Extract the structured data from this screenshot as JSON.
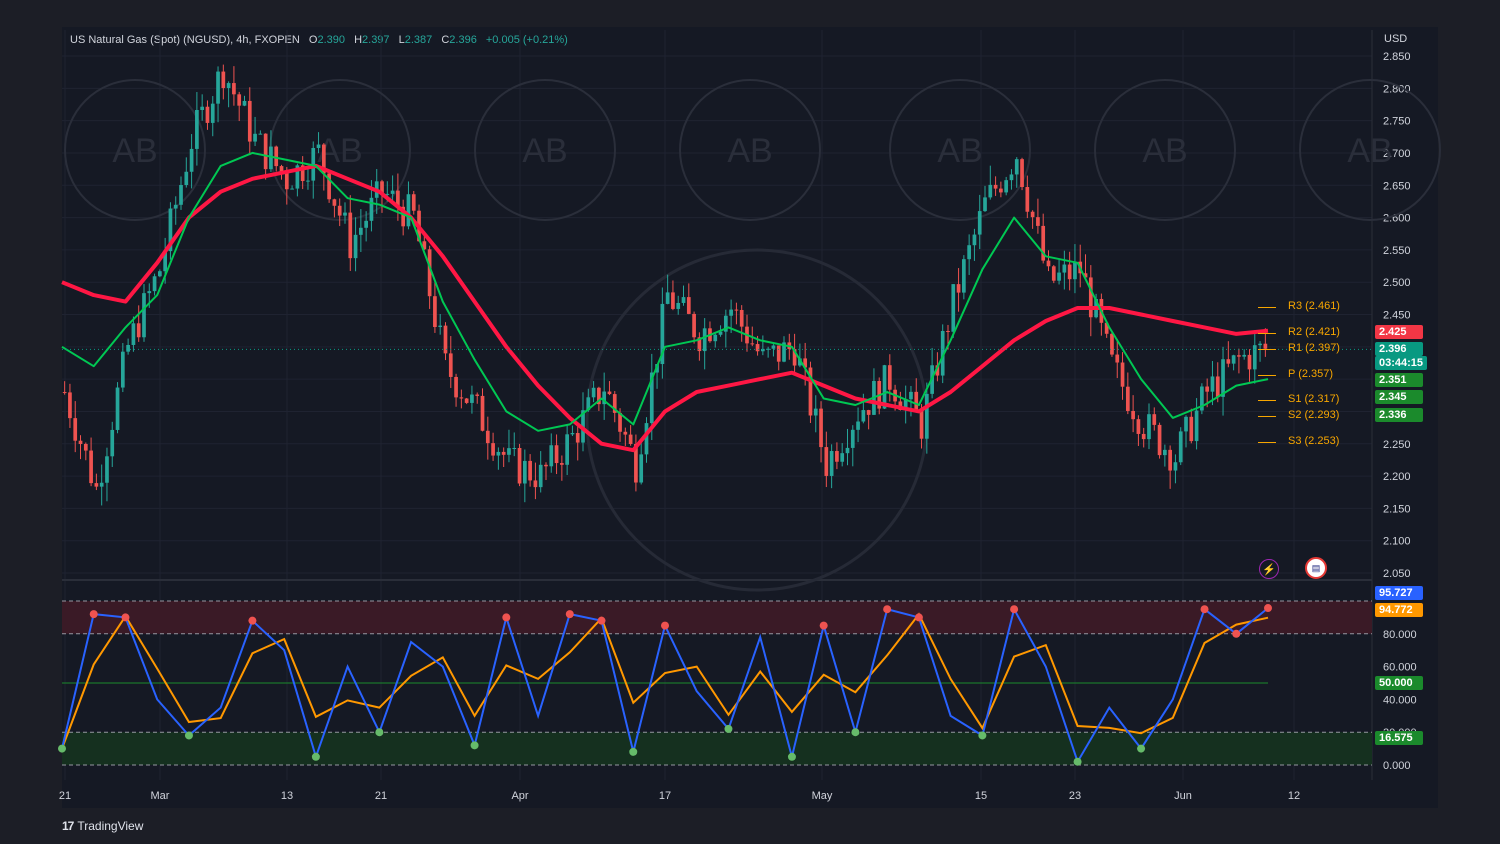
{
  "header": {
    "title": "US Natural Gas (Spot) (NGUSD), 4h, FXOPEN",
    "o_label": "O",
    "o_value": "2.390",
    "h_label": "H",
    "h_value": "2.397",
    "l_label": "L",
    "l_value": "2.387",
    "c_label": "C",
    "c_value": "2.396",
    "change": "+0.005 (+0.21%)"
  },
  "currency": "USD",
  "branding": "TradingView",
  "colors": {
    "up": "#26a69a",
    "down": "#ef5350",
    "ema_fast": "#00c853",
    "ema_slow": "#ff1744",
    "stoch_k": "#2962ff",
    "stoch_d": "#ff9800",
    "pivot": "#f7a600"
  },
  "price_badges": [
    {
      "text": "2.425",
      "color": "#f23645"
    },
    {
      "text": "2.396",
      "color": "#089981"
    },
    {
      "text": "03:44:15",
      "color": "#089981"
    },
    {
      "text": "2.351",
      "color": "#1b8a2c"
    },
    {
      "text": "2.345",
      "color": "#1b8a2c"
    },
    {
      "text": "2.336",
      "color": "#1b8a2c"
    }
  ],
  "pivots": [
    {
      "label": "R3 (2.461)",
      "value": 2.461
    },
    {
      "label": "R2 (2.421)",
      "value": 2.421
    },
    {
      "label": "R1 (2.397)",
      "value": 2.397
    },
    {
      "label": "P (2.357)",
      "value": 2.357
    },
    {
      "label": "S1 (2.317)",
      "value": 2.317
    },
    {
      "label": "S2 (2.293)",
      "value": 2.293
    },
    {
      "label": "S3 (2.253)",
      "value": 2.253
    }
  ],
  "osc_badges": [
    {
      "text": "95.727",
      "color": "#2962ff",
      "value": 95.727
    },
    {
      "text": "94.772",
      "color": "#ff9800",
      "value": 94.772
    },
    {
      "text": "50.000",
      "color": "#1b8a2c",
      "value": 50
    },
    {
      "text": "16.575",
      "color": "#1b8a2c",
      "value": 16.575
    }
  ],
  "chart_data": {
    "type": "line",
    "title": "US Natural Gas (Spot) (NGUSD), 4h, FXOPEN",
    "price_axis": {
      "ticks": [
        "2.850",
        "2.800",
        "2.750",
        "2.700",
        "2.650",
        "2.600",
        "2.550",
        "2.500",
        "2.450",
        "2.400",
        "2.350",
        "2.300",
        "2.250",
        "2.200",
        "2.150",
        "2.100",
        "2.050"
      ],
      "min": 2.05,
      "max": 2.85
    },
    "osc_axis": {
      "ticks": [
        "80.000",
        "60.000",
        "40.000",
        "20.000",
        "0.000"
      ],
      "min": 0,
      "max": 100,
      "overbought": 80,
      "oversold": 20
    },
    "x_ticks": [
      "21",
      "Mar",
      "13",
      "21",
      "Apr",
      "17",
      "May",
      "15",
      "23",
      "Jun",
      "12"
    ],
    "series": [
      {
        "name": "close (approx)",
        "values": [
          2.33,
          2.18,
          2.4,
          2.52,
          2.72,
          2.83,
          2.72,
          2.66,
          2.7,
          2.56,
          2.64,
          2.6,
          2.37,
          2.3,
          2.22,
          2.2,
          2.26,
          2.34,
          2.22,
          2.48,
          2.42,
          2.46,
          2.38,
          2.4,
          2.22,
          2.3,
          2.35,
          2.28,
          2.47,
          2.62,
          2.7,
          2.5,
          2.52,
          2.37,
          2.28,
          2.23,
          2.33,
          2.38,
          2.4
        ]
      },
      {
        "name": "ema slow (approx)",
        "values": [
          2.5,
          2.48,
          2.47,
          2.53,
          2.6,
          2.64,
          2.66,
          2.67,
          2.68,
          2.66,
          2.64,
          2.6,
          2.54,
          2.47,
          2.4,
          2.34,
          2.29,
          2.25,
          2.24,
          2.3,
          2.33,
          2.34,
          2.35,
          2.36,
          2.34,
          2.32,
          2.31,
          2.3,
          2.33,
          2.37,
          2.41,
          2.44,
          2.46,
          2.46,
          2.45,
          2.44,
          2.43,
          2.42,
          2.425
        ]
      },
      {
        "name": "ema fast (approx)",
        "values": [
          2.4,
          2.37,
          2.43,
          2.48,
          2.6,
          2.68,
          2.7,
          2.69,
          2.68,
          2.63,
          2.62,
          2.6,
          2.47,
          2.38,
          2.3,
          2.27,
          2.28,
          2.32,
          2.28,
          2.4,
          2.41,
          2.43,
          2.41,
          2.4,
          2.32,
          2.31,
          2.33,
          2.31,
          2.41,
          2.52,
          2.6,
          2.54,
          2.53,
          2.43,
          2.35,
          2.29,
          2.31,
          2.34,
          2.35
        ]
      }
    ],
    "stoch": {
      "k": [
        10,
        92,
        90,
        40,
        18,
        35,
        88,
        70,
        5,
        60,
        20,
        75,
        60,
        12,
        90,
        30,
        92,
        88,
        8,
        85,
        45,
        22,
        78,
        5,
        85,
        20,
        95,
        90,
        30,
        18,
        95,
        60,
        2,
        35,
        10,
        40,
        95,
        80,
        95.7
      ]
    }
  }
}
